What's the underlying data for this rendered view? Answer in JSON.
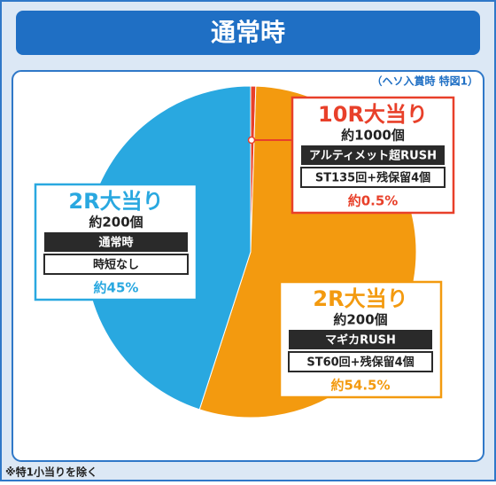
{
  "chart_data": {
    "type": "pie",
    "title": "通常時",
    "subtitle": "（ヘソ入賞時 特図1）",
    "footnote": "※特1小当りを除く",
    "categories": [
      "10R大当り",
      "2R大当り",
      "2R大当り"
    ],
    "values": [
      0.5,
      54.5,
      45
    ],
    "value_labels": [
      "約0.5%",
      "約54.5%",
      "約45%"
    ],
    "colors": [
      "#e8402a",
      "#f39a0f",
      "#29a8e0"
    ],
    "payouts": [
      "約1000個",
      "約200個",
      "約200個"
    ],
    "modes": [
      "アルティメット超RUSH",
      "マギカRUSH",
      "通常時"
    ],
    "notes": [
      "ST135回+残保留4個",
      "ST60回+残保留4個",
      "時短なし"
    ]
  }
}
